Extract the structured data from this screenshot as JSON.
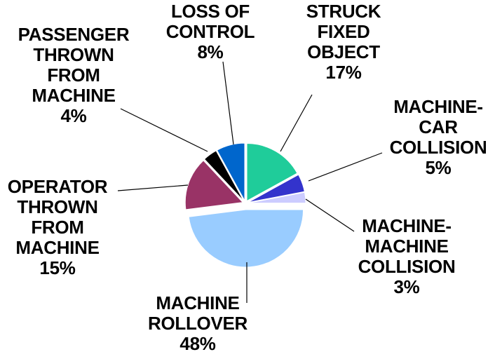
{
  "chart_data": {
    "type": "pie",
    "categories": [
      "STRUCK\nFIXED\nOBJECT",
      "MACHINE-\nCAR\nCOLLISION",
      "MACHINE-\nMACHINE\nCOLLISION",
      "MACHINE\nROLLOVER",
      "OPERATOR\nTHROWN\nFROM\nMACHINE",
      "PASSENGER\nTHROWN\nFROM\nMACHINE",
      "LOSS OF\nCONTROL"
    ],
    "values": [
      17,
      5,
      3,
      48,
      15,
      4,
      8
    ],
    "value_labels": [
      "17%",
      "5%",
      "3%",
      "48%",
      "15%",
      "4%",
      "8%"
    ],
    "colors": [
      "#1fcc9a",
      "#3333cc",
      "#ccccff",
      "#99ccff",
      "#993366",
      "#000000",
      "#0066cc"
    ]
  }
}
